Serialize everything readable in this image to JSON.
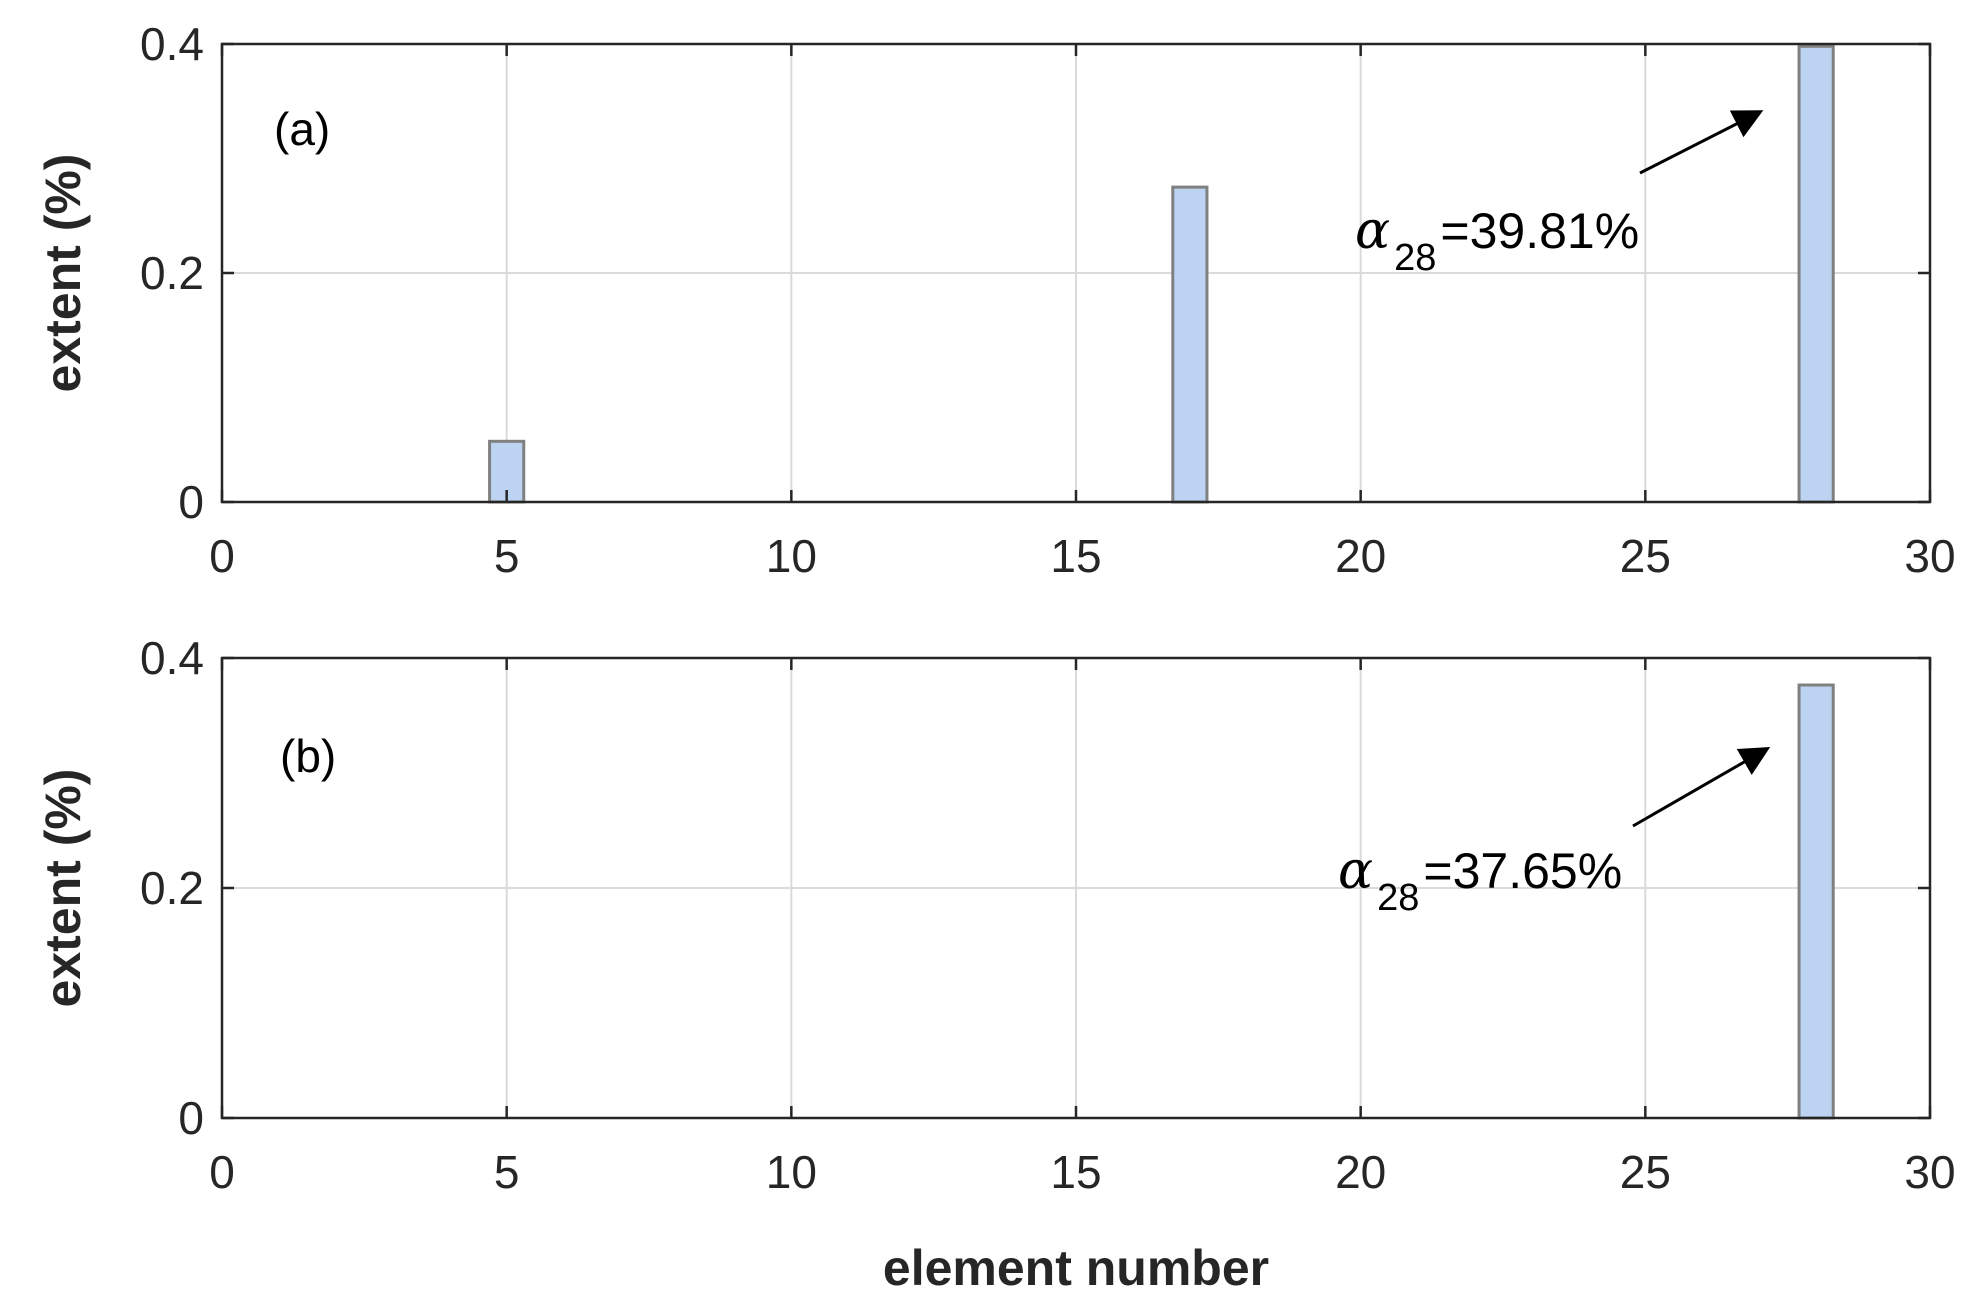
{
  "colors": {
    "bar_fill": "#bcd4f2",
    "bar_edge": "#808080",
    "grid": "#dadada",
    "axis": "#262626"
  },
  "chart_data": [
    {
      "type": "bar",
      "panel_label": "(a)",
      "xlabel": "",
      "ylabel": "extent (%)",
      "xlim": [
        0,
        30
      ],
      "ylim": [
        0,
        0.4
      ],
      "xticks": [
        "0",
        "5",
        "10",
        "15",
        "20",
        "25",
        "30"
      ],
      "yticks": [
        "0",
        "0.2",
        "0.4"
      ],
      "grid": true,
      "bar_width": 0.6,
      "x": [
        5,
        17,
        28
      ],
      "values": [
        0.053,
        0.275,
        0.398
      ],
      "annotation": {
        "symbol": "α",
        "subscript": "28",
        "text": "=39.81%",
        "target_x": 28
      }
    },
    {
      "type": "bar",
      "panel_label": "(b)",
      "xlabel": "element number",
      "ylabel": "extent (%)",
      "xlim": [
        0,
        30
      ],
      "ylim": [
        0,
        0.4
      ],
      "xticks": [
        "0",
        "5",
        "10",
        "15",
        "20",
        "25",
        "30"
      ],
      "yticks": [
        "0",
        "0.2",
        "0.4"
      ],
      "grid": true,
      "bar_width": 0.6,
      "x": [
        28
      ],
      "values": [
        0.3765
      ],
      "annotation": {
        "symbol": "α",
        "subscript": "28",
        "text": "=37.65%",
        "target_x": 28
      }
    }
  ]
}
